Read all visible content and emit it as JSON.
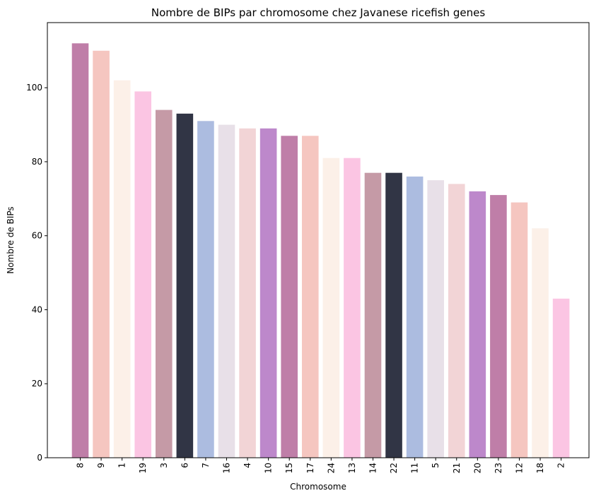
{
  "chart_data": {
    "type": "bar",
    "title": "Nombre de BIPs par chromosome chez Javanese ricefish genes",
    "xlabel": "Chromosome",
    "ylabel": "Nombre de BIPs",
    "ylim": [
      0,
      117.6
    ],
    "yticks": [
      0,
      20,
      40,
      60,
      80,
      100
    ],
    "grid": false,
    "categories": [
      "8",
      "9",
      "1",
      "19",
      "3",
      "6",
      "7",
      "16",
      "4",
      "10",
      "15",
      "17",
      "24",
      "13",
      "14",
      "22",
      "11",
      "5",
      "21",
      "20",
      "23",
      "12",
      "18",
      "2"
    ],
    "values": [
      112,
      110,
      102,
      99,
      94,
      93,
      91,
      90,
      89,
      89,
      87,
      87,
      81,
      81,
      77,
      77,
      76,
      75,
      74,
      72,
      71,
      69,
      62,
      43
    ],
    "colors": [
      "#bf7ea8",
      "#f5c6c0",
      "#fcf0e8",
      "#fbc5e3",
      "#c59aa6",
      "#313545",
      "#acbce0",
      "#e8e0e8",
      "#f2d4d6",
      "#bd88cb",
      "#bf7ea8",
      "#f5c6c0",
      "#fcf0e8",
      "#fbc5e3",
      "#c59aa6",
      "#313545",
      "#acbce0",
      "#e8e0e8",
      "#f2d4d6",
      "#bd88cb",
      "#bf7ea8",
      "#f5c6c0",
      "#fcf0e8",
      "#fbc5e3"
    ]
  }
}
